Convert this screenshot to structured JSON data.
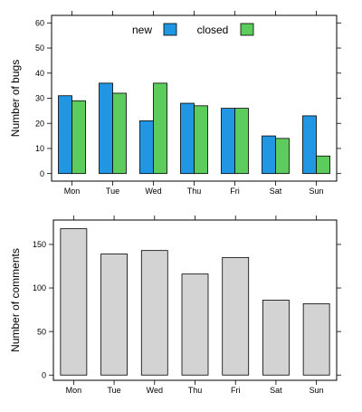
{
  "chart_data": [
    {
      "type": "bar",
      "categories": [
        "Mon",
        "Tue",
        "Wed",
        "Thu",
        "Fri",
        "Sat",
        "Sun"
      ],
      "series": [
        {
          "name": "new",
          "values": [
            31,
            36,
            21,
            28,
            26,
            15,
            23
          ],
          "color": "#2196e3"
        },
        {
          "name": "closed",
          "values": [
            29,
            32,
            36,
            27,
            26,
            14,
            7
          ],
          "color": "#5ccc5c"
        }
      ],
      "ylabel": "Number of bugs",
      "xlabel": "",
      "ylim": [
        -3,
        63
      ],
      "yticks": [
        0,
        10,
        20,
        30,
        40,
        50,
        60
      ],
      "legend": "top-center",
      "grid": false
    },
    {
      "type": "bar",
      "categories": [
        "Mon",
        "Tue",
        "Wed",
        "Thu",
        "Fri",
        "Sat",
        "Sun"
      ],
      "series": [
        {
          "values": [
            168,
            139,
            143,
            116,
            135,
            86,
            82
          ],
          "color": "#d3d3d3"
        }
      ],
      "ylabel": "Number of comments",
      "xlabel": "",
      "ylim": [
        -6,
        178
      ],
      "yticks": [
        0,
        50,
        100,
        150
      ],
      "grid": false
    }
  ]
}
